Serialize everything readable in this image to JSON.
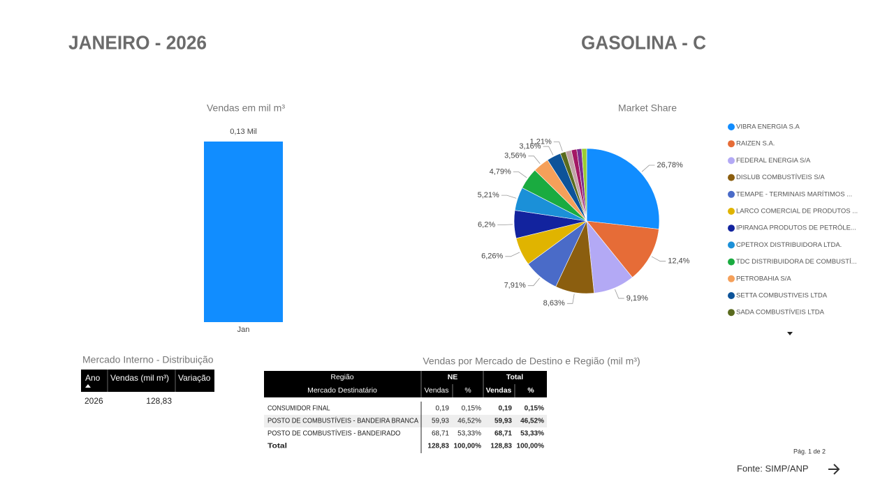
{
  "header": {
    "period": "JANEIRO - 2026",
    "product": "GASOLINA - C"
  },
  "chart_data": [
    {
      "type": "bar",
      "title": "Vendas  em mil m³",
      "categories": [
        "Jan"
      ],
      "values": [
        0.13
      ],
      "value_labels": [
        "0,13 Mil"
      ],
      "color": "#118dff"
    },
    {
      "type": "pie",
      "title": "Market Share",
      "categories": [
        "VIBRA ENERGIA S.A",
        "RAIZEN S.A.",
        "FEDERAL ENERGIA S/A",
        "DISLUB COMBUSTÍVEIS S/A",
        "TEMAPE - TERMINAIS MARÍTIMOS ...",
        "LARCO COMERCIAL DE PRODUTOS ...",
        "IPIRANGA PRODUTOS DE PETRÓLE...",
        "CPETROX DISTRIBUIDORA LTDA.",
        "TDC DISTRIBUIDORA DE COMBUSTÍ...",
        "PETROBAHIA S/A",
        "SETTA COMBUSTIVEIS LTDA",
        "SADA COMBUSTÍVEIS LTDA",
        null,
        null,
        null,
        null
      ],
      "values": [
        26.78,
        12.4,
        9.19,
        8.63,
        7.91,
        6.26,
        6.2,
        5.21,
        4.79,
        3.56,
        3.16,
        1.21,
        1.3,
        1.2,
        1.1,
        1.1
      ],
      "value_labels": [
        "26,78%",
        "12,4%",
        "9,19%",
        "8,63%",
        "7,91%",
        "6,26%",
        "6,2%",
        "5,21%",
        "4,79%",
        "3,56%",
        "3,16%",
        "1,21%",
        null,
        null,
        null,
        null
      ],
      "colors": [
        "#118dff",
        "#e66c37",
        "#b3a9f5",
        "#8b5e0f",
        "#4a6bc8",
        "#e0b400",
        "#12239e",
        "#1b90d8",
        "#1aab40",
        "#f5a05a",
        "#0d5399",
        "#5a6b1e",
        "#c2a3a8",
        "#a31865",
        "#7b2d8f",
        "#9acd32"
      ]
    }
  ],
  "tables": [
    {
      "title": "Mercado Interno - Distribuição",
      "columns": [
        "Ano",
        "Vendas (mil m³)",
        "Variação"
      ],
      "rows": [
        [
          "2026",
          "128,83"
        ]
      ]
    },
    {
      "title": "Vendas por Mercado de Destino e Região (mil m³)",
      "header": [
        "Região",
        "NE",
        "Total"
      ],
      "columns": [
        "Mercado Destinatário",
        "Vendas",
        "%",
        "Vendas",
        "%"
      ],
      "rows": [
        [
          "CONSUMIDOR FINAL",
          "0,19",
          "0,15%",
          "0,19",
          "0,15%"
        ],
        [
          "POSTO DE COMBUSTÍVEIS - BANDEIRA BRANCA",
          "59,93",
          "46,52%",
          "59,93",
          "46,52%"
        ],
        [
          "POSTO DE COMBUSTÍVEIS - BANDEIRADO",
          "68,71",
          "53,33%",
          "68,71",
          "53,33%"
        ],
        [
          "Total",
          "128,83",
          "100,00%",
          "128,83",
          "100,00%"
        ]
      ]
    }
  ],
  "footer": {
    "page": "Pág. 1 de 2",
    "source": "Fonte: SIMP/ANP"
  }
}
